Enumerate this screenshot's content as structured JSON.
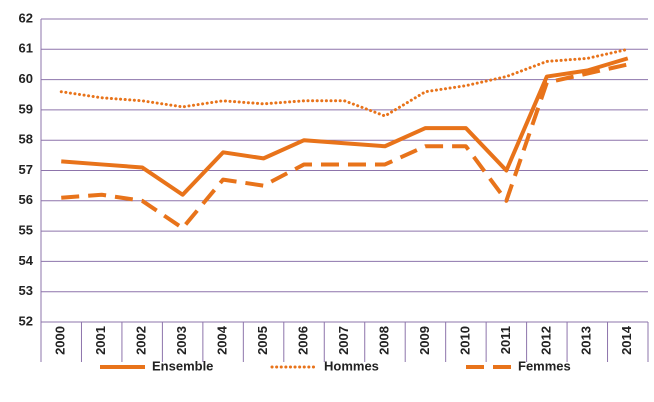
{
  "chart_data": {
    "type": "line",
    "categories": [
      "2000",
      "2001",
      "2002",
      "2003",
      "2004",
      "2005",
      "2006",
      "2007",
      "2008",
      "2009",
      "2010",
      "2011",
      "2012",
      "2013",
      "2014"
    ],
    "series": [
      {
        "name": "Ensemble",
        "color": "#e8731a",
        "dash": "solid",
        "values": [
          57.3,
          57.2,
          57.1,
          56.2,
          57.6,
          57.4,
          58.0,
          57.9,
          57.8,
          58.4,
          58.4,
          57.0,
          60.1,
          60.3,
          60.7
        ]
      },
      {
        "name": "Hommes",
        "color": "#e8731a",
        "dash": "dotted",
        "values": [
          59.6,
          59.4,
          59.3,
          59.1,
          59.3,
          59.2,
          59.3,
          59.3,
          58.8,
          59.6,
          59.8,
          60.1,
          60.6,
          60.7,
          61.0
        ]
      },
      {
        "name": "Femmes",
        "color": "#e8731a",
        "dash": "dashed",
        "values": [
          56.1,
          56.2,
          56.0,
          55.1,
          56.7,
          56.5,
          57.2,
          57.2,
          57.2,
          57.8,
          57.8,
          56.0,
          59.9,
          60.2,
          60.5
        ]
      }
    ],
    "ylim": [
      52,
      62
    ],
    "yticks": [
      52,
      53,
      54,
      55,
      56,
      57,
      58,
      59,
      60,
      61,
      62
    ],
    "grid": true,
    "legend": "bottom"
  }
}
